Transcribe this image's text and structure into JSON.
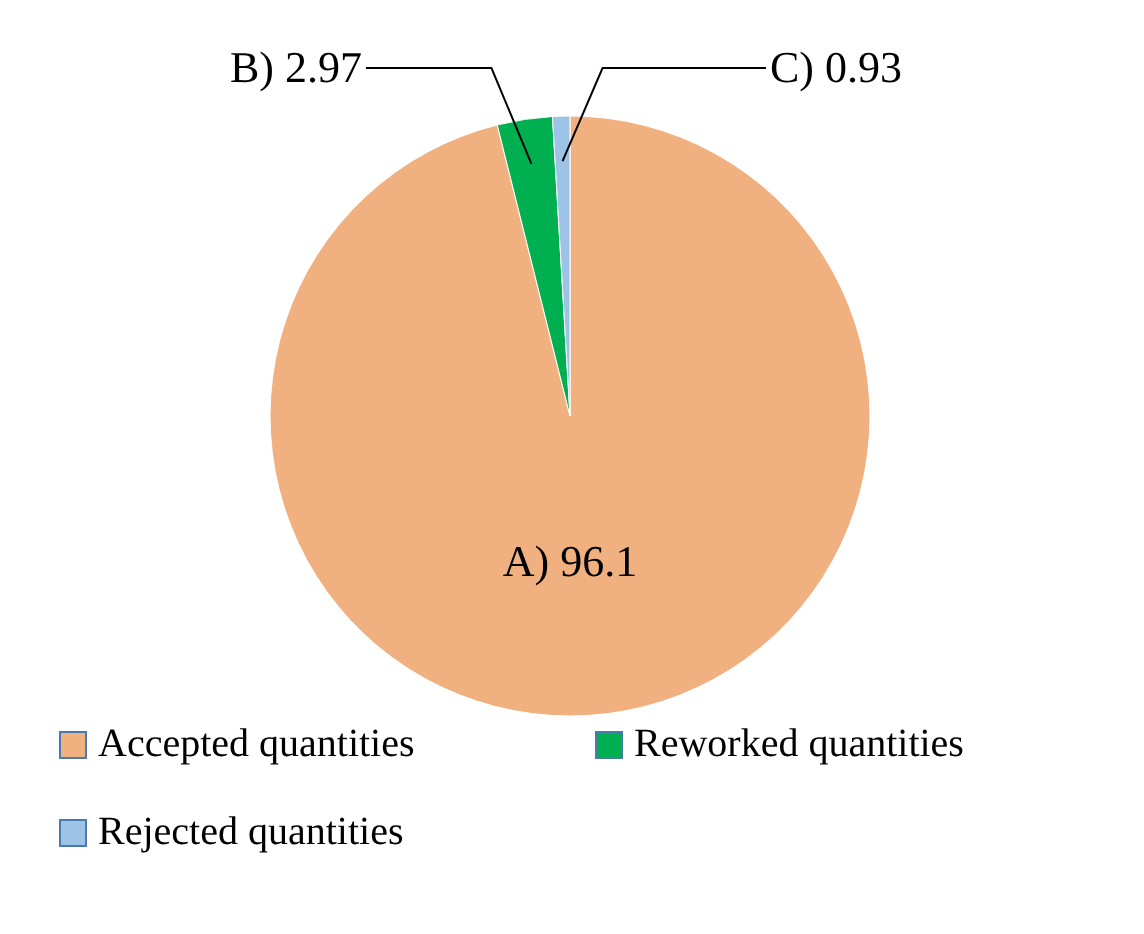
{
  "chart_data": {
    "type": "pie",
    "categories": [
      "Accepted quantities",
      "Reworked quantities",
      "Rejected quantities"
    ],
    "values": [
      96.1,
      2.97,
      0.93
    ],
    "colors": [
      "#f0b07f",
      "#00b050",
      "#9dc3e6"
    ],
    "value_labels": [
      "A) 96.1",
      "B) 2.97",
      "C) 0.93"
    ],
    "legend": "bottom"
  }
}
